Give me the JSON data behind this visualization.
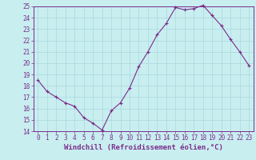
{
  "x": [
    0,
    1,
    2,
    3,
    4,
    5,
    6,
    7,
    8,
    9,
    10,
    11,
    12,
    13,
    14,
    15,
    16,
    17,
    18,
    19,
    20,
    21,
    22,
    23
  ],
  "y": [
    18.5,
    17.5,
    17.0,
    16.5,
    16.2,
    15.2,
    14.7,
    14.1,
    15.8,
    16.5,
    17.8,
    19.7,
    21.0,
    22.5,
    23.5,
    24.9,
    24.7,
    24.8,
    25.1,
    24.2,
    23.3,
    22.1,
    21.0,
    19.8
  ],
  "line_color": "#7b2d8b",
  "marker": "+",
  "marker_size": 3,
  "bg_color": "#c8eef0",
  "grid_color": "#aad8dc",
  "tick_color": "#7b2d8b",
  "xlabel": "Windchill (Refroidissement éolien,°C)",
  "ylim": [
    14,
    25
  ],
  "xlim": [
    -0.5,
    23.5
  ],
  "yticks": [
    14,
    15,
    16,
    17,
    18,
    19,
    20,
    21,
    22,
    23,
    24,
    25
  ],
  "xticks": [
    0,
    1,
    2,
    3,
    4,
    5,
    6,
    7,
    8,
    9,
    10,
    11,
    12,
    13,
    14,
    15,
    16,
    17,
    18,
    19,
    20,
    21,
    22,
    23
  ],
  "xlabel_fontsize": 6.5,
  "tick_fontsize": 5.5,
  "line_width": 0.8,
  "marker_edge_width": 0.8
}
